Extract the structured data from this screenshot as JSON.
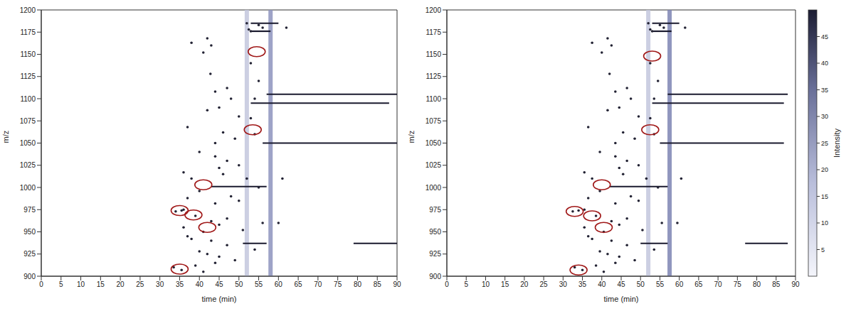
{
  "chart_data": [
    {
      "type": "scatter",
      "x_label": "time (min)",
      "y_label": "m/z",
      "xlim": [
        0,
        90
      ],
      "xticks": [
        0,
        5,
        10,
        15,
        20,
        25,
        30,
        35,
        40,
        45,
        50,
        55,
        60,
        65,
        70,
        75,
        80,
        85,
        90
      ],
      "ylim": [
        900,
        1200
      ],
      "yticks": [
        900,
        925,
        950,
        975,
        1000,
        1025,
        1050,
        1075,
        1100,
        1125,
        1150,
        1175,
        1200
      ],
      "series": [
        {
          "type": "band",
          "color": "#c3c7dd",
          "x": [
            52,
            52
          ],
          "y": [
            900,
            1200
          ]
        },
        {
          "type": "band",
          "color": "#8d93bd",
          "x": [
            58,
            58
          ],
          "y": [
            900,
            1200
          ]
        },
        {
          "type": "line",
          "color": "#1a1a2e",
          "x": [
            53,
            60,
            null,
            57,
            90,
            null,
            53,
            88,
            null,
            56,
            90,
            null,
            43,
            57,
            null,
            51,
            57,
            null,
            79,
            90,
            null,
            53,
            58
          ],
          "y": [
            1185,
            1185,
            null,
            1105,
            1105,
            null,
            1095,
            1095,
            null,
            1050,
            1050,
            null,
            1001,
            1001,
            null,
            937,
            937,
            null,
            937,
            937,
            null,
            1176,
            1176
          ]
        },
        {
          "type": "scatter",
          "color": "#222233",
          "x": [
            38,
            42,
            43,
            41,
            52,
            52.5,
            53,
            55,
            56,
            42.8,
            44,
            47,
            48,
            42,
            45,
            50,
            53,
            37,
            46,
            49,
            44,
            40,
            44,
            47,
            50,
            45,
            36,
            38,
            46,
            52,
            40,
            48,
            37,
            44,
            50,
            36,
            39,
            43,
            47,
            36,
            41,
            45,
            51,
            37,
            38,
            43,
            47,
            40,
            42,
            45,
            49,
            44,
            39,
            41,
            54,
            54,
            55,
            56,
            54,
            53,
            55,
            61,
            62,
            60,
            33.5,
            35.5,
            34,
            35.5
          ],
          "y": [
            1163,
            1168,
            1160,
            1152,
            1185,
            1178,
            1176,
            1183,
            1180,
            1128,
            1108,
            1112,
            1100,
            1087,
            1090,
            1080,
            1078,
            1068,
            1062,
            1055,
            1050,
            1040,
            1035,
            1030,
            1025,
            1022,
            1017,
            1010,
            1015,
            1010,
            996,
            990,
            988,
            982,
            985,
            975,
            968,
            962,
            965,
            955,
            950,
            958,
            952,
            945,
            942,
            940,
            935,
            928,
            925,
            922,
            918,
            915,
            912,
            905,
            1100,
            1060,
            1000,
            960,
            930,
            1140,
            1120,
            1010,
            1180,
            960,
            910,
            907,
            973,
            974
          ]
        },
        {
          "type": "scatter",
          "marker": "ellipse",
          "color": "#a01818",
          "x": [
            54.5,
            53.5,
            41,
            35,
            38.5,
            42,
            35
          ],
          "y": [
            1153,
            1065,
            1003,
            974,
            969,
            955,
            908
          ]
        }
      ]
    },
    {
      "type": "scatter",
      "x_label": "time (min)",
      "y_label": "m/z",
      "xlim": [
        0,
        90
      ],
      "xticks": [
        0,
        5,
        10,
        15,
        20,
        25,
        30,
        35,
        40,
        45,
        50,
        55,
        60,
        65,
        70,
        75,
        80,
        85,
        90
      ],
      "ylim": [
        900,
        1200
      ],
      "yticks": [
        900,
        925,
        950,
        975,
        1000,
        1025,
        1050,
        1075,
        1100,
        1125,
        1150,
        1175,
        1200
      ],
      "series": [
        {
          "type": "band",
          "color": "#c3c7dd",
          "x": [
            52,
            52
          ],
          "y": [
            900,
            1200
          ]
        },
        {
          "type": "band",
          "color": "#7d84b3",
          "x": [
            57.5,
            57.5
          ],
          "y": [
            900,
            1200
          ]
        },
        {
          "type": "line",
          "color": "#1a1a2e",
          "x": [
            53,
            60,
            null,
            57,
            88,
            null,
            53,
            87,
            null,
            55,
            87,
            null,
            42,
            57,
            null,
            50,
            57,
            null,
            77,
            88,
            null,
            53,
            58
          ],
          "y": [
            1185,
            1185,
            null,
            1105,
            1105,
            null,
            1095,
            1095,
            null,
            1050,
            1050,
            null,
            1001,
            1001,
            null,
            937,
            937,
            null,
            937,
            937,
            null,
            1176,
            1176
          ]
        },
        {
          "type": "scatter",
          "color": "#222233",
          "x": [
            37.5,
            41.5,
            42.5,
            40,
            52,
            52.5,
            53,
            55,
            56,
            42,
            43.5,
            46.5,
            47.5,
            41.5,
            44.5,
            49.5,
            52.5,
            36.5,
            45.5,
            48.5,
            43.5,
            39.5,
            43.5,
            46.5,
            49.5,
            44.5,
            35.5,
            37.5,
            45.5,
            51.5,
            39.5,
            47.5,
            36.5,
            43.5,
            49.5,
            35.5,
            38.5,
            42.5,
            46.5,
            35.5,
            40.5,
            44.5,
            50.5,
            36.5,
            37.5,
            42.5,
            46.5,
            39.5,
            41.5,
            44.5,
            48.5,
            43.5,
            38.5,
            40.5,
            53.5,
            53.5,
            54.5,
            55.5,
            53.5,
            52.5,
            54.5,
            60.5,
            61.5,
            59.5,
            33,
            35,
            32.5,
            34
          ],
          "y": [
            1163,
            1168,
            1160,
            1152,
            1185,
            1178,
            1176,
            1183,
            1180,
            1128,
            1108,
            1112,
            1100,
            1087,
            1090,
            1080,
            1078,
            1068,
            1062,
            1055,
            1050,
            1040,
            1035,
            1030,
            1025,
            1022,
            1017,
            1010,
            1015,
            1010,
            996,
            990,
            988,
            982,
            985,
            975,
            968,
            962,
            965,
            955,
            950,
            958,
            952,
            945,
            942,
            940,
            935,
            928,
            925,
            922,
            918,
            915,
            912,
            905,
            1100,
            1060,
            1000,
            960,
            930,
            1140,
            1120,
            1010,
            1180,
            960,
            910,
            907,
            973,
            974
          ]
        },
        {
          "type": "scatter",
          "marker": "ellipse",
          "color": "#a01818",
          "x": [
            53,
            52.5,
            40,
            33,
            37.5,
            40.5,
            34
          ],
          "y": [
            1148,
            1065,
            1003,
            973,
            968,
            955,
            907
          ]
        }
      ],
      "color_bar": {
        "label": "Intensity",
        "range": [
          0,
          50
        ],
        "ticks": [
          5,
          10,
          15,
          20,
          25,
          30,
          35,
          40,
          45
        ]
      }
    }
  ]
}
